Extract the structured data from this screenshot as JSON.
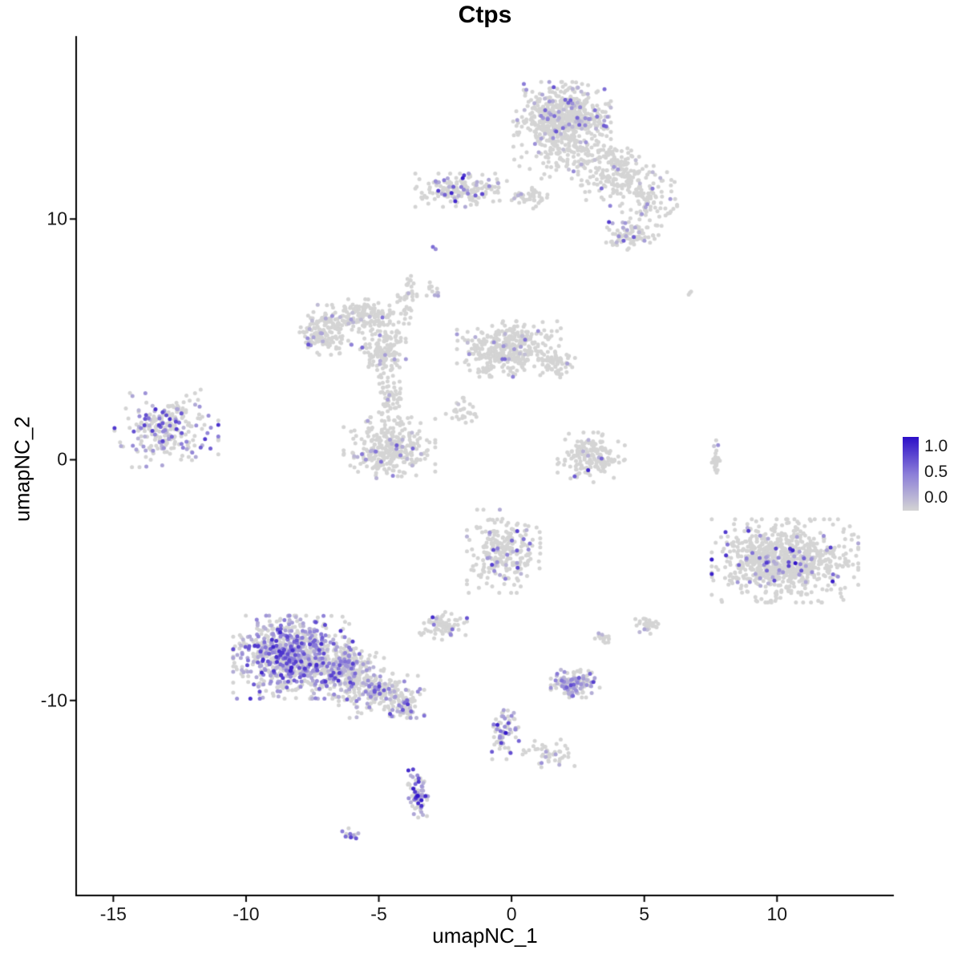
{
  "chart_data": {
    "type": "scatter",
    "title": "Ctps",
    "xlabel": "umapNC_1",
    "ylabel": "umapNC_2",
    "xlim": [
      -16.4,
      14.4
    ],
    "ylim": [
      -18.1,
      17.6
    ],
    "grid": false,
    "legend_position": "right",
    "x_ticks": [
      {
        "v": -15,
        "label": "-15"
      },
      {
        "v": -10,
        "label": "-10"
      },
      {
        "v": -5,
        "label": "-5"
      },
      {
        "v": 0,
        "label": "0"
      },
      {
        "v": 5,
        "label": "5"
      },
      {
        "v": 10,
        "label": "10"
      }
    ],
    "y_ticks": [
      {
        "v": 10,
        "label": "10"
      },
      {
        "v": 0,
        "label": "0"
      },
      {
        "v": -10,
        "label": "-10"
      }
    ],
    "legend": {
      "ticks": [
        "1.0",
        "0.5",
        "0.0"
      ]
    },
    "colors": {
      "low": "#d4d4d4",
      "mid": "#8b7dd8",
      "high": "#2c0fc8",
      "axis": "#000000",
      "tick_text": "#1a1a1a",
      "background": "#ffffff"
    },
    "point_radius": 2.5,
    "seed": 42,
    "clusters": [
      {
        "name": "top-main",
        "cx": 1.9,
        "cy": 14.2,
        "rx": 1.6,
        "ry": 1.3,
        "n": 600,
        "frac": 0.1,
        "vmax": 0.7
      },
      {
        "name": "top-main-fringe",
        "cx": 2.6,
        "cy": 12.6,
        "rx": 2.2,
        "ry": 0.8,
        "n": 150,
        "frac": 0.05,
        "vmax": 0.5
      },
      {
        "name": "top-ext-right",
        "cx": 4.0,
        "cy": 11.7,
        "rx": 1.3,
        "ry": 1.0,
        "n": 140,
        "frac": 0.06,
        "vmax": 0.6
      },
      {
        "name": "upper-mid",
        "cx": -1.9,
        "cy": 11.2,
        "rx": 1.5,
        "ry": 0.6,
        "n": 170,
        "frac": 0.2,
        "vmax": 1.0
      },
      {
        "name": "upper-mid-right",
        "cx": 0.6,
        "cy": 10.9,
        "rx": 0.8,
        "ry": 0.4,
        "n": 40,
        "frac": 0.1,
        "vmax": 0.6
      },
      {
        "name": "top-right",
        "cx": 5.2,
        "cy": 10.8,
        "rx": 0.9,
        "ry": 1.0,
        "n": 90,
        "frac": 0.08,
        "vmax": 0.6
      },
      {
        "name": "top-right-low",
        "cx": 4.5,
        "cy": 9.3,
        "rx": 0.9,
        "ry": 0.5,
        "n": 80,
        "frac": 0.18,
        "vmax": 0.8
      },
      {
        "name": "mid-left-arc-a",
        "cx": -7.0,
        "cy": 5.4,
        "rx": 0.9,
        "ry": 0.9,
        "n": 160,
        "frac": 0.1,
        "vmax": 0.7
      },
      {
        "name": "mid-left-arc-b",
        "cx": -5.6,
        "cy": 6.0,
        "rx": 1.0,
        "ry": 0.6,
        "n": 120,
        "frac": 0.06,
        "vmax": 0.6
      },
      {
        "name": "mid-left-arc-c",
        "cx": -4.9,
        "cy": 4.6,
        "rx": 0.8,
        "ry": 1.0,
        "n": 140,
        "frac": 0.05,
        "vmax": 0.6
      },
      {
        "name": "mid-thin-tail",
        "cx": -3.9,
        "cy": 6.8,
        "rx": 0.35,
        "ry": 1.0,
        "n": 40,
        "frac": 0.05,
        "vmax": 0.5
      },
      {
        "name": "center-mid",
        "cx": -0.1,
        "cy": 4.6,
        "rx": 1.7,
        "ry": 1.0,
        "n": 380,
        "frac": 0.04,
        "vmax": 0.6
      },
      {
        "name": "center-mid-right",
        "cx": 1.7,
        "cy": 4.0,
        "rx": 0.6,
        "ry": 0.5,
        "n": 60,
        "frac": 0.08,
        "vmax": 0.7
      },
      {
        "name": "connector-a",
        "cx": -4.6,
        "cy": 2.6,
        "rx": 0.5,
        "ry": 0.8,
        "n": 60,
        "frac": 0.06,
        "vmax": 0.5
      },
      {
        "name": "connector-b",
        "cx": -1.9,
        "cy": 2.0,
        "rx": 0.5,
        "ry": 0.5,
        "n": 30,
        "frac": 0.03,
        "vmax": 0.4
      },
      {
        "name": "mid-v",
        "cx": -4.6,
        "cy": 0.5,
        "rx": 1.5,
        "ry": 1.1,
        "n": 330,
        "frac": 0.09,
        "vmax": 0.7
      },
      {
        "name": "far-left",
        "cx": -13.0,
        "cy": 1.3,
        "rx": 1.7,
        "ry": 1.4,
        "n": 260,
        "frac": 0.28,
        "vmax": 0.85
      },
      {
        "name": "sliver",
        "cx": 7.7,
        "cy": 0.0,
        "rx": 0.15,
        "ry": 0.7,
        "n": 25,
        "frac": 0.04,
        "vmax": 0.4
      },
      {
        "name": "right-center",
        "cx": 3.0,
        "cy": 0.1,
        "rx": 1.1,
        "ry": 0.9,
        "n": 170,
        "frac": 0.04,
        "vmax": 1.0
      },
      {
        "name": "right-big",
        "cx": 10.3,
        "cy": -4.2,
        "rx": 2.4,
        "ry": 1.5,
        "n": 850,
        "frac": 0.07,
        "vmax": 1.0
      },
      {
        "name": "center-low",
        "cx": -0.3,
        "cy": -3.8,
        "rx": 1.2,
        "ry": 1.5,
        "n": 260,
        "frac": 0.12,
        "vmax": 0.8
      },
      {
        "name": "center-low-small",
        "cx": -2.6,
        "cy": -6.9,
        "rx": 0.8,
        "ry": 0.5,
        "n": 70,
        "frac": 0.15,
        "vmax": 0.9
      },
      {
        "name": "bottom-left-main",
        "cx": -8.3,
        "cy": -8.2,
        "rx": 1.9,
        "ry": 1.5,
        "n": 850,
        "frac": 0.45,
        "vmax": 0.9
      },
      {
        "name": "bottom-left-mid",
        "cx": -6.3,
        "cy": -8.7,
        "rx": 1.3,
        "ry": 1.0,
        "n": 300,
        "frac": 0.3,
        "vmax": 0.8
      },
      {
        "name": "bottom-left-tail",
        "cx": -4.9,
        "cy": -9.8,
        "rx": 1.4,
        "ry": 0.8,
        "n": 200,
        "frac": 0.25,
        "vmax": 0.8
      },
      {
        "name": "bottom-tail-tip",
        "cx": -3.9,
        "cy": -10.3,
        "rx": 0.4,
        "ry": 0.5,
        "n": 40,
        "frac": 0.3,
        "vmax": 0.8
      },
      {
        "name": "small-bottom-mid",
        "cx": 2.4,
        "cy": -9.3,
        "rx": 0.8,
        "ry": 0.5,
        "n": 130,
        "frac": 0.5,
        "vmax": 0.8
      },
      {
        "name": "below-center",
        "cx": -0.3,
        "cy": -11.4,
        "rx": 0.5,
        "ry": 0.9,
        "n": 70,
        "frac": 0.3,
        "vmax": 1.0
      },
      {
        "name": "trail-right",
        "cx": 1.4,
        "cy": -12.2,
        "rx": 1.0,
        "ry": 0.5,
        "n": 45,
        "frac": 0.08,
        "vmax": 0.5
      },
      {
        "name": "bottom-small",
        "cx": -3.5,
        "cy": -13.9,
        "rx": 0.35,
        "ry": 0.9,
        "n": 80,
        "frac": 0.5,
        "vmax": 1.0
      },
      {
        "name": "tiny-bottom",
        "cx": -6.1,
        "cy": -15.6,
        "rx": 0.3,
        "ry": 0.25,
        "n": 14,
        "frac": 0.6,
        "vmax": 0.9
      },
      {
        "name": "right-mid-small-a",
        "cx": 5.1,
        "cy": -6.9,
        "rx": 0.4,
        "ry": 0.35,
        "n": 28,
        "frac": 0.08,
        "vmax": 0.5
      },
      {
        "name": "right-mid-small-b",
        "cx": 3.4,
        "cy": -7.4,
        "rx": 0.3,
        "ry": 0.25,
        "n": 14,
        "frac": 0.15,
        "vmax": 0.6
      },
      {
        "name": "isolate-a",
        "cx": 6.7,
        "cy": 6.9,
        "rx": 0.15,
        "ry": 0.15,
        "n": 3,
        "frac": 0,
        "vmax": 0
      },
      {
        "name": "isolate-b",
        "cx": -2.9,
        "cy": 8.8,
        "rx": 0.1,
        "ry": 0.1,
        "n": 2,
        "frac": 0.5,
        "vmax": 0.6
      },
      {
        "name": "isolate-c",
        "cx": -3.0,
        "cy": 7.0,
        "rx": 0.3,
        "ry": 0.6,
        "n": 12,
        "frac": 0.1,
        "vmax": 0.5
      }
    ]
  }
}
